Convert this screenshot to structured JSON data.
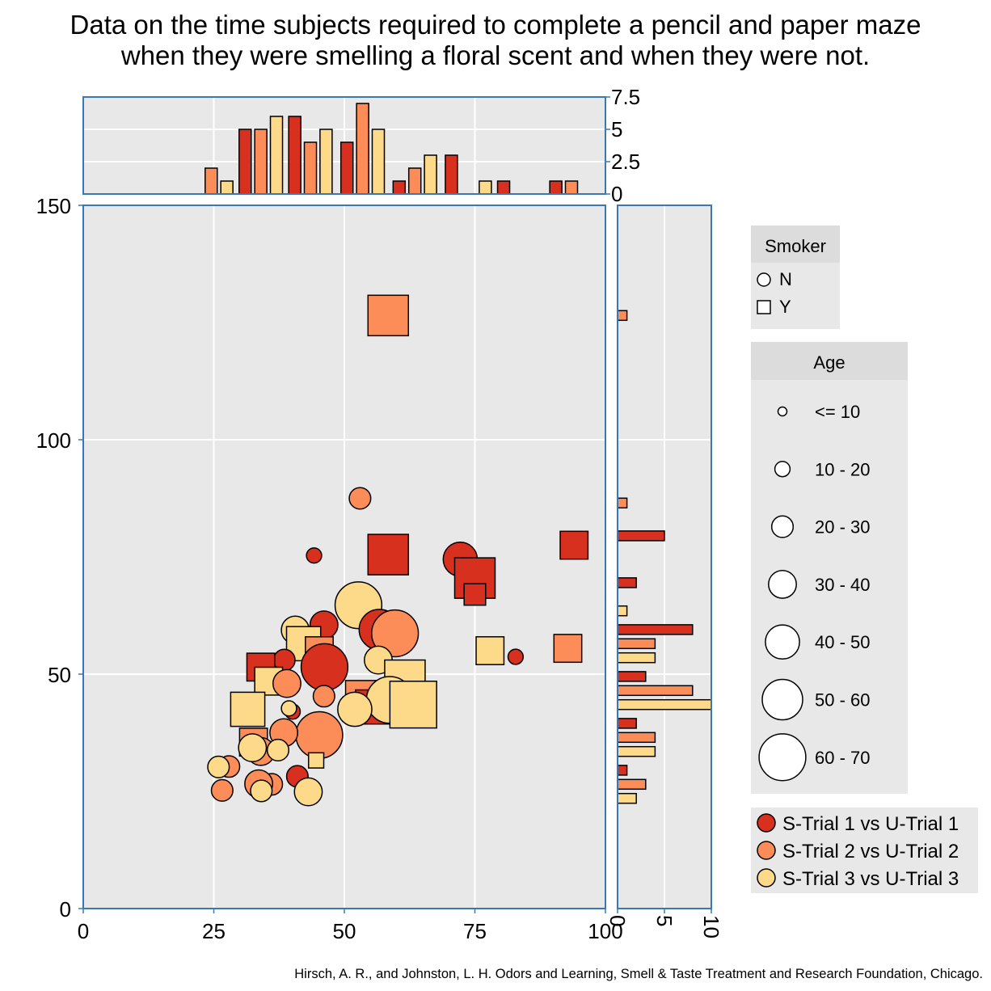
{
  "title_lines": [
    "Data on the time subjects required to complete a pencil and paper maze",
    "when they were smelling a floral scent and when they were not."
  ],
  "caption": "Hirsch, A. R., and Johnston, L. H. Odors and Learning, Smell & Taste Treatment and Research Foundation, Chicago.",
  "colors": {
    "panel_bg": "#e8e8e8",
    "frame": "#3a78b5",
    "series1": "#d7301f",
    "series2": "#fc8d59",
    "series3": "#fdd98a"
  },
  "chart_data": {
    "type": "scatter",
    "x_axis": {
      "min": 0,
      "max": 100,
      "ticks": [
        "0",
        "25",
        "50",
        "75",
        "100"
      ]
    },
    "y_axis": {
      "min": 0,
      "max": 150,
      "ticks": [
        "0",
        "50",
        "100",
        "150"
      ]
    },
    "top_hist_axis": {
      "min": 0,
      "max": 7.5,
      "ticks": [
        "0",
        "2.5",
        "5",
        "7.5"
      ]
    },
    "right_hist_axis": {
      "min": 0,
      "max": 10,
      "ticks": [
        "0",
        "5",
        "10"
      ]
    },
    "legend_smoker": {
      "title": "Smoker",
      "items": [
        {
          "label": "N",
          "shape": "circle"
        },
        {
          "label": "Y",
          "shape": "square"
        }
      ]
    },
    "legend_age": {
      "title": "Age",
      "items": [
        "<= 10",
        "10 - 20",
        "20 - 30",
        "30 - 40",
        "40 - 50",
        "50 - 60",
        "60 - 70"
      ]
    },
    "legend_series": [
      {
        "label": "S-Trial 1 vs U-Trial 1",
        "series": 1
      },
      {
        "label": "S-Trial 2 vs U-Trial 2",
        "series": 2
      },
      {
        "label": "S-Trial 3 vs U-Trial 3",
        "series": 3
      }
    ],
    "points": [
      {
        "x": 58.4,
        "y": 126.5,
        "series": 2,
        "smoker": "Y",
        "age": 60
      },
      {
        "x": 53,
        "y": 87.5,
        "series": 2,
        "smoker": "N",
        "age": 30
      },
      {
        "x": 44.2,
        "y": 75.3,
        "series": 1,
        "smoker": "N",
        "age": 20
      },
      {
        "x": 58.4,
        "y": 75.5,
        "series": 1,
        "smoker": "Y",
        "age": 60
      },
      {
        "x": 72.2,
        "y": 74.5,
        "series": 1,
        "smoker": "N",
        "age": 50
      },
      {
        "x": 75,
        "y": 70.5,
        "series": 1,
        "smoker": "Y",
        "age": 60
      },
      {
        "x": 75,
        "y": 67,
        "series": 1,
        "smoker": "Y",
        "age": 30
      },
      {
        "x": 94,
        "y": 77.5,
        "series": 1,
        "smoker": "Y",
        "age": 40
      },
      {
        "x": 46.1,
        "y": 60.5,
        "series": 1,
        "smoker": "N",
        "age": 40
      },
      {
        "x": 52.7,
        "y": 64.7,
        "series": 3,
        "smoker": "N",
        "age": 70
      },
      {
        "x": 56.7,
        "y": 59.5,
        "series": 1,
        "smoker": "N",
        "age": 60
      },
      {
        "x": 59.7,
        "y": 58.7,
        "series": 2,
        "smoker": "N",
        "age": 70
      },
      {
        "x": 40.6,
        "y": 59.4,
        "series": 3,
        "smoker": "N",
        "age": 40
      },
      {
        "x": 42.2,
        "y": 56.5,
        "series": 3,
        "smoker": "Y",
        "age": 50
      },
      {
        "x": 77.9,
        "y": 55,
        "series": 3,
        "smoker": "Y",
        "age": 40
      },
      {
        "x": 92.8,
        "y": 55.5,
        "series": 2,
        "smoker": "Y",
        "age": 40
      },
      {
        "x": 82.8,
        "y": 53.7,
        "series": 1,
        "smoker": "N",
        "age": 20
      },
      {
        "x": 45.2,
        "y": 55,
        "series": 2,
        "smoker": "Y",
        "age": 40
      },
      {
        "x": 38.5,
        "y": 53,
        "series": 1,
        "smoker": "N",
        "age": 30
      },
      {
        "x": 46.2,
        "y": 51.5,
        "series": 1,
        "smoker": "N",
        "age": 70
      },
      {
        "x": 34,
        "y": 51.5,
        "series": 1,
        "smoker": "Y",
        "age": 40
      },
      {
        "x": 56.5,
        "y": 53,
        "series": 3,
        "smoker": "N",
        "age": 40
      },
      {
        "x": 61.6,
        "y": 48.7,
        "series": 3,
        "smoker": "Y",
        "age": 60
      },
      {
        "x": 35.5,
        "y": 48.5,
        "series": 3,
        "smoker": "Y",
        "age": 40
      },
      {
        "x": 39,
        "y": 48,
        "series": 2,
        "smoker": "N",
        "age": 40
      },
      {
        "x": 53.5,
        "y": 45,
        "series": 2,
        "smoker": "Y",
        "age": 50
      },
      {
        "x": 46.1,
        "y": 45.3,
        "series": 2,
        "smoker": "N",
        "age": 30
      },
      {
        "x": 55.4,
        "y": 43,
        "series": 1,
        "smoker": "Y",
        "age": 50
      },
      {
        "x": 57.7,
        "y": 44.3,
        "series": 3,
        "smoker": "N",
        "age": 40
      },
      {
        "x": 58.7,
        "y": 44.5,
        "series": 3,
        "smoker": "N",
        "age": 70
      },
      {
        "x": 63.2,
        "y": 43.5,
        "series": 3,
        "smoker": "Y",
        "age": 70
      },
      {
        "x": 52,
        "y": 42.5,
        "series": 3,
        "smoker": "N",
        "age": 50
      },
      {
        "x": 31.5,
        "y": 42.5,
        "series": 3,
        "smoker": "Y",
        "age": 50
      },
      {
        "x": 40.1,
        "y": 42,
        "series": 1,
        "smoker": "N",
        "age": 20
      },
      {
        "x": 39.4,
        "y": 42.7,
        "series": 3,
        "smoker": "N",
        "age": 20
      },
      {
        "x": 45.2,
        "y": 37,
        "series": 2,
        "smoker": "N",
        "age": 70
      },
      {
        "x": 38.4,
        "y": 37.5,
        "series": 2,
        "smoker": "N",
        "age": 40
      },
      {
        "x": 32.6,
        "y": 35.5,
        "series": 2,
        "smoker": "Y",
        "age": 40
      },
      {
        "x": 34,
        "y": 33.5,
        "series": 2,
        "smoker": "N",
        "age": 40
      },
      {
        "x": 32.4,
        "y": 34.3,
        "series": 3,
        "smoker": "N",
        "age": 40
      },
      {
        "x": 37.3,
        "y": 33.8,
        "series": 3,
        "smoker": "N",
        "age": 30
      },
      {
        "x": 44.6,
        "y": 31.6,
        "series": 3,
        "smoker": "Y",
        "age": 20
      },
      {
        "x": 41,
        "y": 28.2,
        "series": 1,
        "smoker": "N",
        "age": 30
      },
      {
        "x": 27.9,
        "y": 30.3,
        "series": 2,
        "smoker": "N",
        "age": 30
      },
      {
        "x": 25.9,
        "y": 30.2,
        "series": 3,
        "smoker": "N",
        "age": 30
      },
      {
        "x": 36.1,
        "y": 26.5,
        "series": 2,
        "smoker": "N",
        "age": 30
      },
      {
        "x": 33.6,
        "y": 26.6,
        "series": 2,
        "smoker": "N",
        "age": 40
      },
      {
        "x": 26.6,
        "y": 25.2,
        "series": 2,
        "smoker": "N",
        "age": 30
      },
      {
        "x": 34.1,
        "y": 25.1,
        "series": 3,
        "smoker": "N",
        "age": 30
      },
      {
        "x": 43.1,
        "y": 24.9,
        "series": 3,
        "smoker": "N",
        "age": 40
      }
    ],
    "top_histogram": [
      {
        "x": 24.5,
        "count": 2,
        "series": 2
      },
      {
        "x": 27.5,
        "count": 1,
        "series": 3
      },
      {
        "x": 31,
        "count": 5,
        "series": 1
      },
      {
        "x": 34,
        "count": 5,
        "series": 2
      },
      {
        "x": 37,
        "count": 6,
        "series": 3
      },
      {
        "x": 40.5,
        "count": 6,
        "series": 1
      },
      {
        "x": 43.5,
        "count": 4,
        "series": 2
      },
      {
        "x": 46.5,
        "count": 5,
        "series": 3
      },
      {
        "x": 50.5,
        "count": 4,
        "series": 1
      },
      {
        "x": 53.5,
        "count": 7,
        "series": 2
      },
      {
        "x": 56.5,
        "count": 5,
        "series": 3
      },
      {
        "x": 60.5,
        "count": 1,
        "series": 1
      },
      {
        "x": 63.5,
        "count": 2,
        "series": 2
      },
      {
        "x": 66.5,
        "count": 3,
        "series": 3
      },
      {
        "x": 70.5,
        "count": 3,
        "series": 1
      },
      {
        "x": 77,
        "count": 1,
        "series": 3
      },
      {
        "x": 80.5,
        "count": 1,
        "series": 1
      },
      {
        "x": 90.5,
        "count": 1,
        "series": 1
      },
      {
        "x": 93.5,
        "count": 1,
        "series": 2
      }
    ],
    "right_histogram": [
      {
        "y": 126.5,
        "count": 1,
        "series": 2
      },
      {
        "y": 86.5,
        "count": 1,
        "series": 2
      },
      {
        "y": 79.5,
        "count": 5,
        "series": 1
      },
      {
        "y": 69.5,
        "count": 2,
        "series": 1
      },
      {
        "y": 63.5,
        "count": 1,
        "series": 3
      },
      {
        "y": 59.5,
        "count": 8,
        "series": 1
      },
      {
        "y": 56.5,
        "count": 4,
        "series": 2
      },
      {
        "y": 53.5,
        "count": 4,
        "series": 3
      },
      {
        "y": 49.5,
        "count": 3,
        "series": 1
      },
      {
        "y": 46.5,
        "count": 8,
        "series": 2
      },
      {
        "y": 43.5,
        "count": 10,
        "series": 3
      },
      {
        "y": 39.5,
        "count": 2,
        "series": 1
      },
      {
        "y": 36.5,
        "count": 4,
        "series": 2
      },
      {
        "y": 33.5,
        "count": 4,
        "series": 3
      },
      {
        "y": 29.5,
        "count": 1,
        "series": 1
      },
      {
        "y": 26.5,
        "count": 3,
        "series": 2
      },
      {
        "y": 23.5,
        "count": 2,
        "series": 3
      }
    ]
  }
}
